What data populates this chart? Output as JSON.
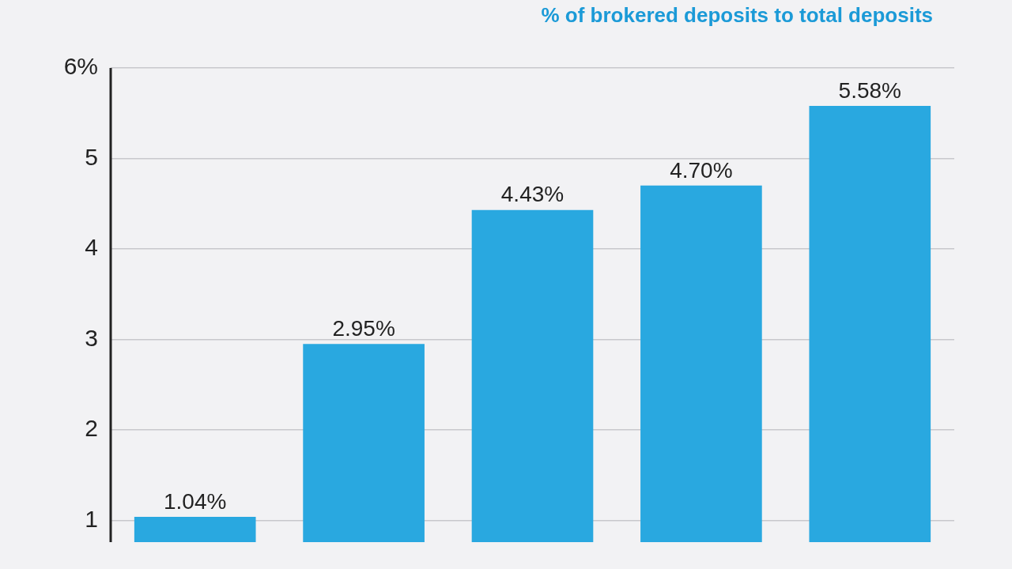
{
  "chart_data": {
    "type": "bar",
    "title": "% of brokered deposits to total deposits",
    "categories": [
      null,
      null,
      null,
      null,
      null
    ],
    "values": [
      1.04,
      2.95,
      4.43,
      4.7,
      5.58
    ],
    "value_labels": [
      "1.04%",
      "2.95%",
      "4.43%",
      "4.70%",
      "5.58%"
    ],
    "color": "#29a8e0",
    "ylim": [
      0.76,
      6
    ],
    "yticks": [
      1,
      2,
      3,
      4,
      5,
      {
        "value": 6,
        "label": "6%"
      }
    ],
    "grid": "y"
  }
}
